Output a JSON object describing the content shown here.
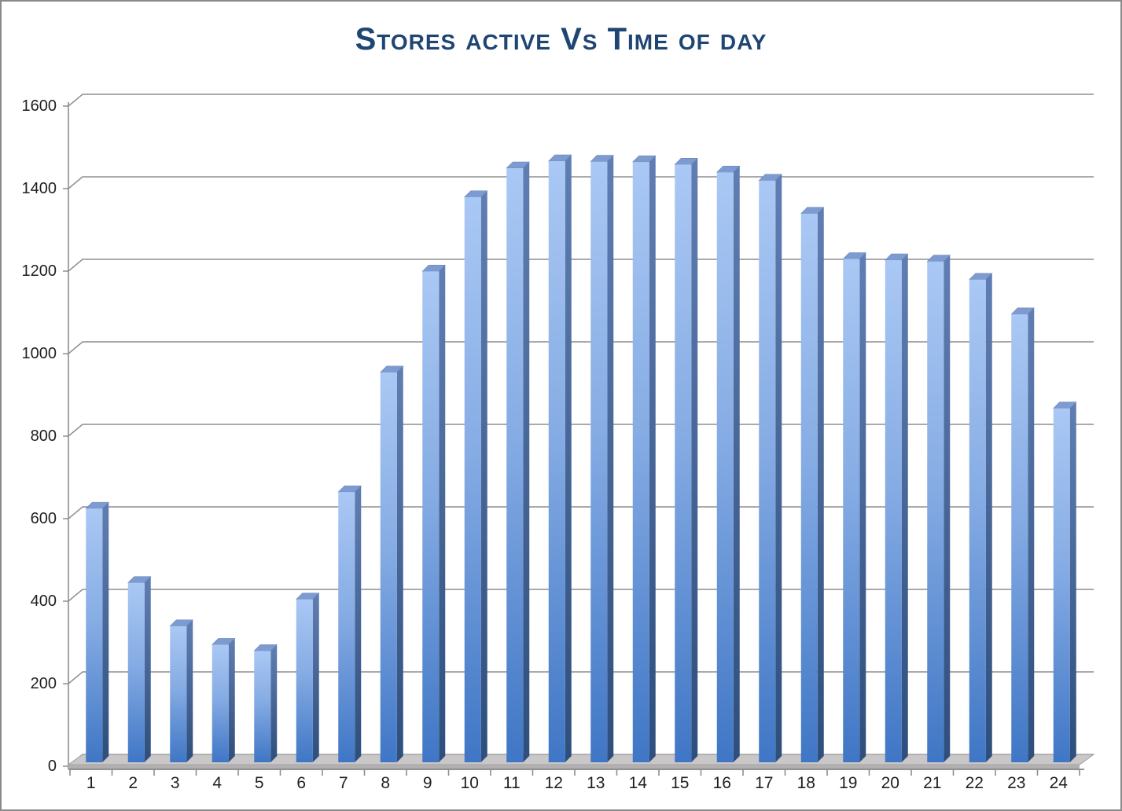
{
  "chart_data": {
    "type": "bar",
    "style": "3d-column",
    "title": "Stores active Vs Time of day",
    "xlabel": "",
    "ylabel": "",
    "categories": [
      "1",
      "2",
      "3",
      "4",
      "5",
      "6",
      "7",
      "8",
      "9",
      "10",
      "11",
      "12",
      "13",
      "14",
      "15",
      "16",
      "17",
      "18",
      "19",
      "20",
      "21",
      "22",
      "23",
      "24"
    ],
    "values": [
      615,
      435,
      330,
      285,
      270,
      395,
      655,
      945,
      1190,
      1370,
      1440,
      1457,
      1456,
      1455,
      1449,
      1430,
      1410,
      1330,
      1220,
      1217,
      1214,
      1170,
      1086,
      858
    ],
    "ylim": [
      0,
      1600
    ],
    "yticks": [
      0,
      200,
      400,
      600,
      800,
      1000,
      1200,
      1400,
      1600
    ],
    "grid": true,
    "legend": "none",
    "colors": {
      "title_text": "#1F4573",
      "bar_front_top": "#aac8f4",
      "bar_front_mid": "#86ace4",
      "bar_front_bottom": "#3f76c5",
      "bar_side_top": "#607eb3",
      "bar_side_bottom": "#2e4e7c",
      "bar_top_face": "#7d9bd1",
      "floor_top": "#c9c7c7",
      "floor_front": "#b1afaf",
      "gridline": "#8e8e8e",
      "axis_line": "#858585",
      "tick_label": "#1f1f1f",
      "frame_border": "#8a8a8a"
    }
  }
}
